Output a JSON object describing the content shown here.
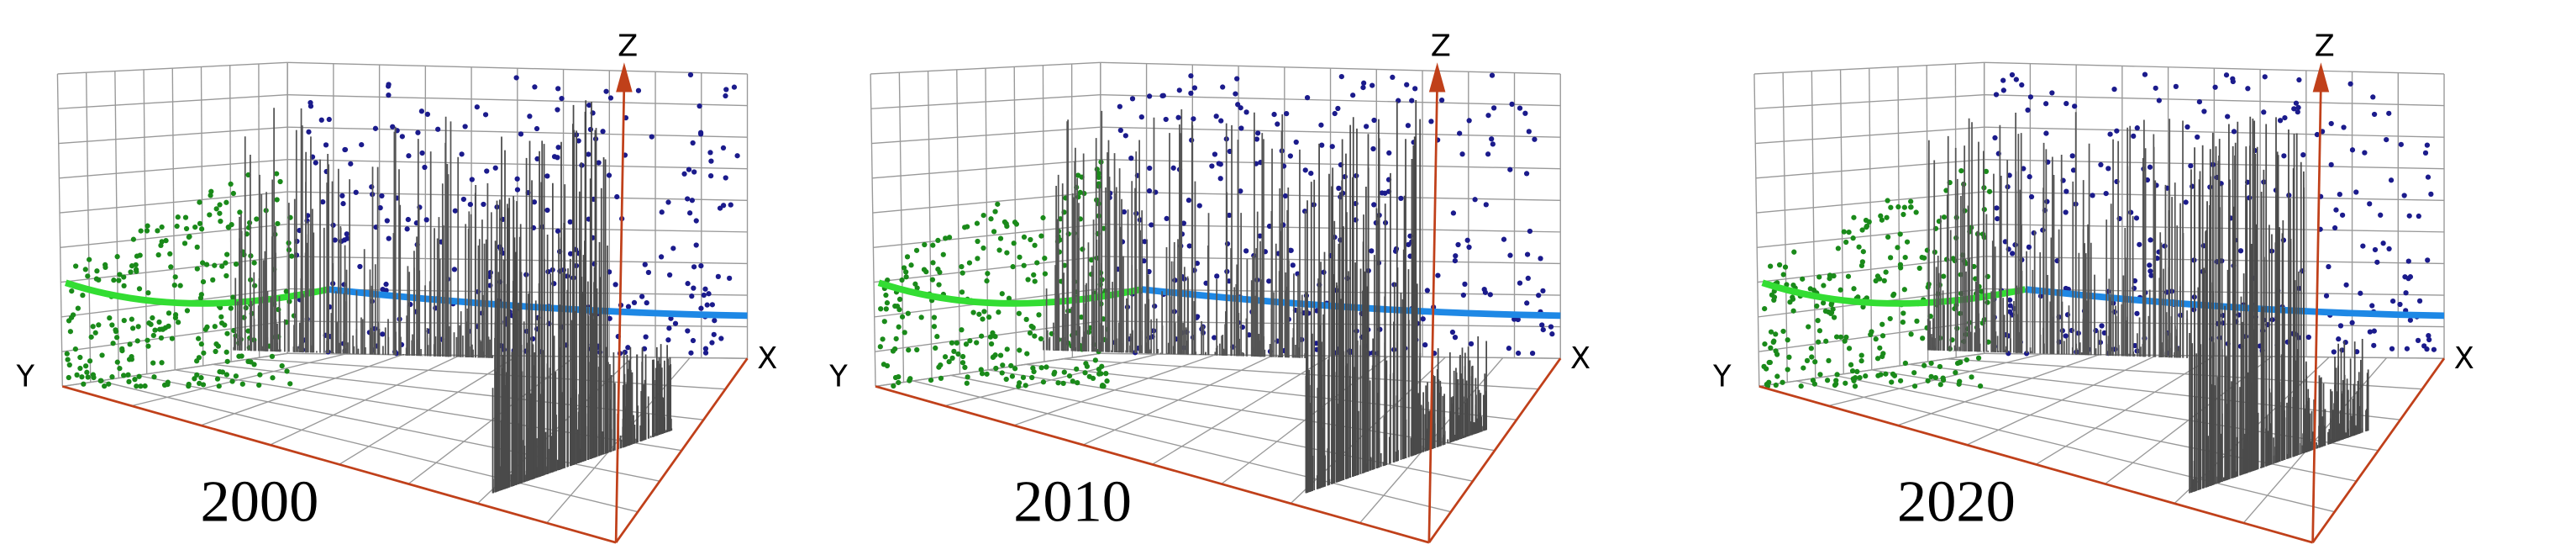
{
  "panels": [
    {
      "year": "2000",
      "axes": {
        "x": "X",
        "y": "Y",
        "z": "Z"
      }
    },
    {
      "year": "2010",
      "axes": {
        "x": "X",
        "y": "Y",
        "z": "Z"
      }
    },
    {
      "year": "2020",
      "axes": {
        "x": "X",
        "y": "Y",
        "z": "Z"
      }
    }
  ]
}
